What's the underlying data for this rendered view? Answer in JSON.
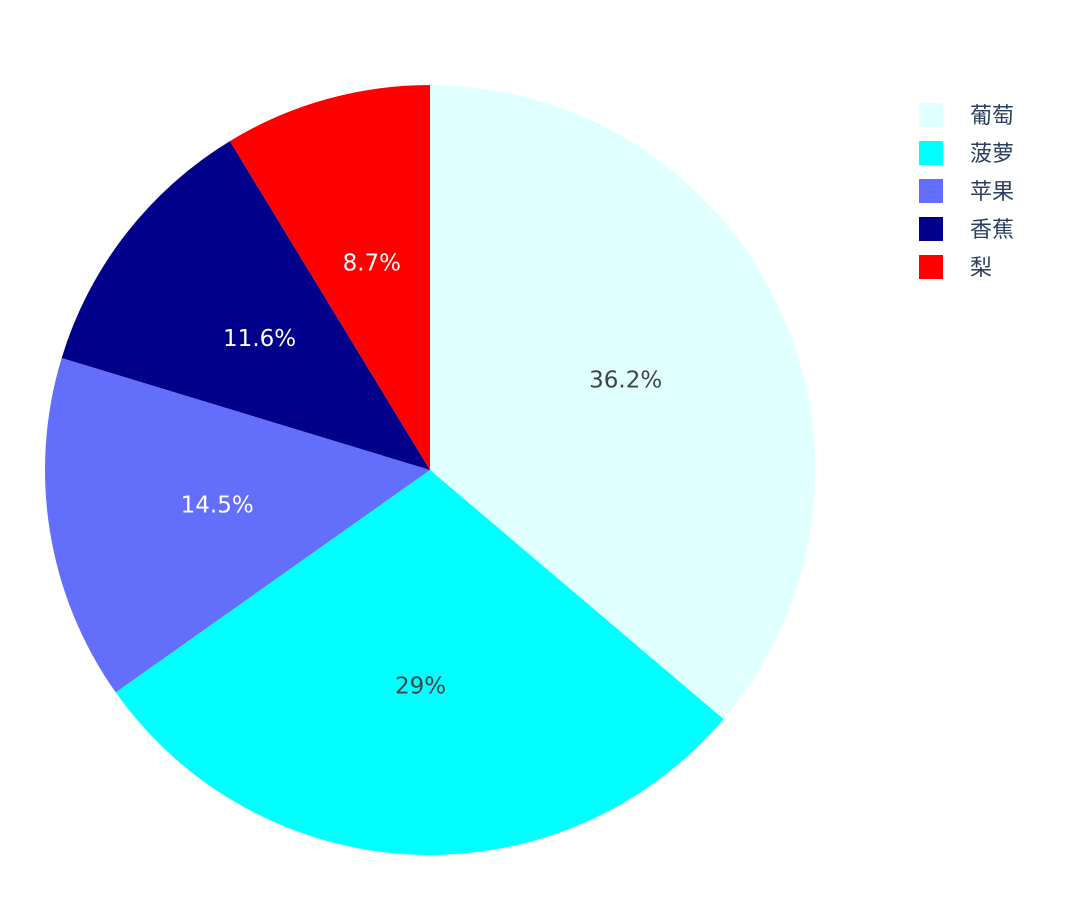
{
  "chart_data": {
    "type": "pie",
    "labels": [
      "葡萄",
      "菠萝",
      "苹果",
      "香蕉",
      "梨"
    ],
    "values": [
      36.2,
      29,
      14.5,
      11.6,
      8.7
    ],
    "percent_labels": [
      "36.2%",
      "29%",
      "14.5%",
      "11.6%",
      "8.7%"
    ],
    "colors": [
      "#e0ffff",
      "#00ffff",
      "#636efa",
      "#00008b",
      "#ff0000"
    ],
    "label_colors": [
      "#444444",
      "#444444",
      "#ffffff",
      "#ffffff",
      "#ffffff"
    ],
    "direction": "clockwise",
    "start": "top",
    "legend": {
      "placement": "top-right",
      "entries": [
        "葡萄",
        "菠萝",
        "苹果",
        "香蕉",
        "梨"
      ]
    }
  }
}
